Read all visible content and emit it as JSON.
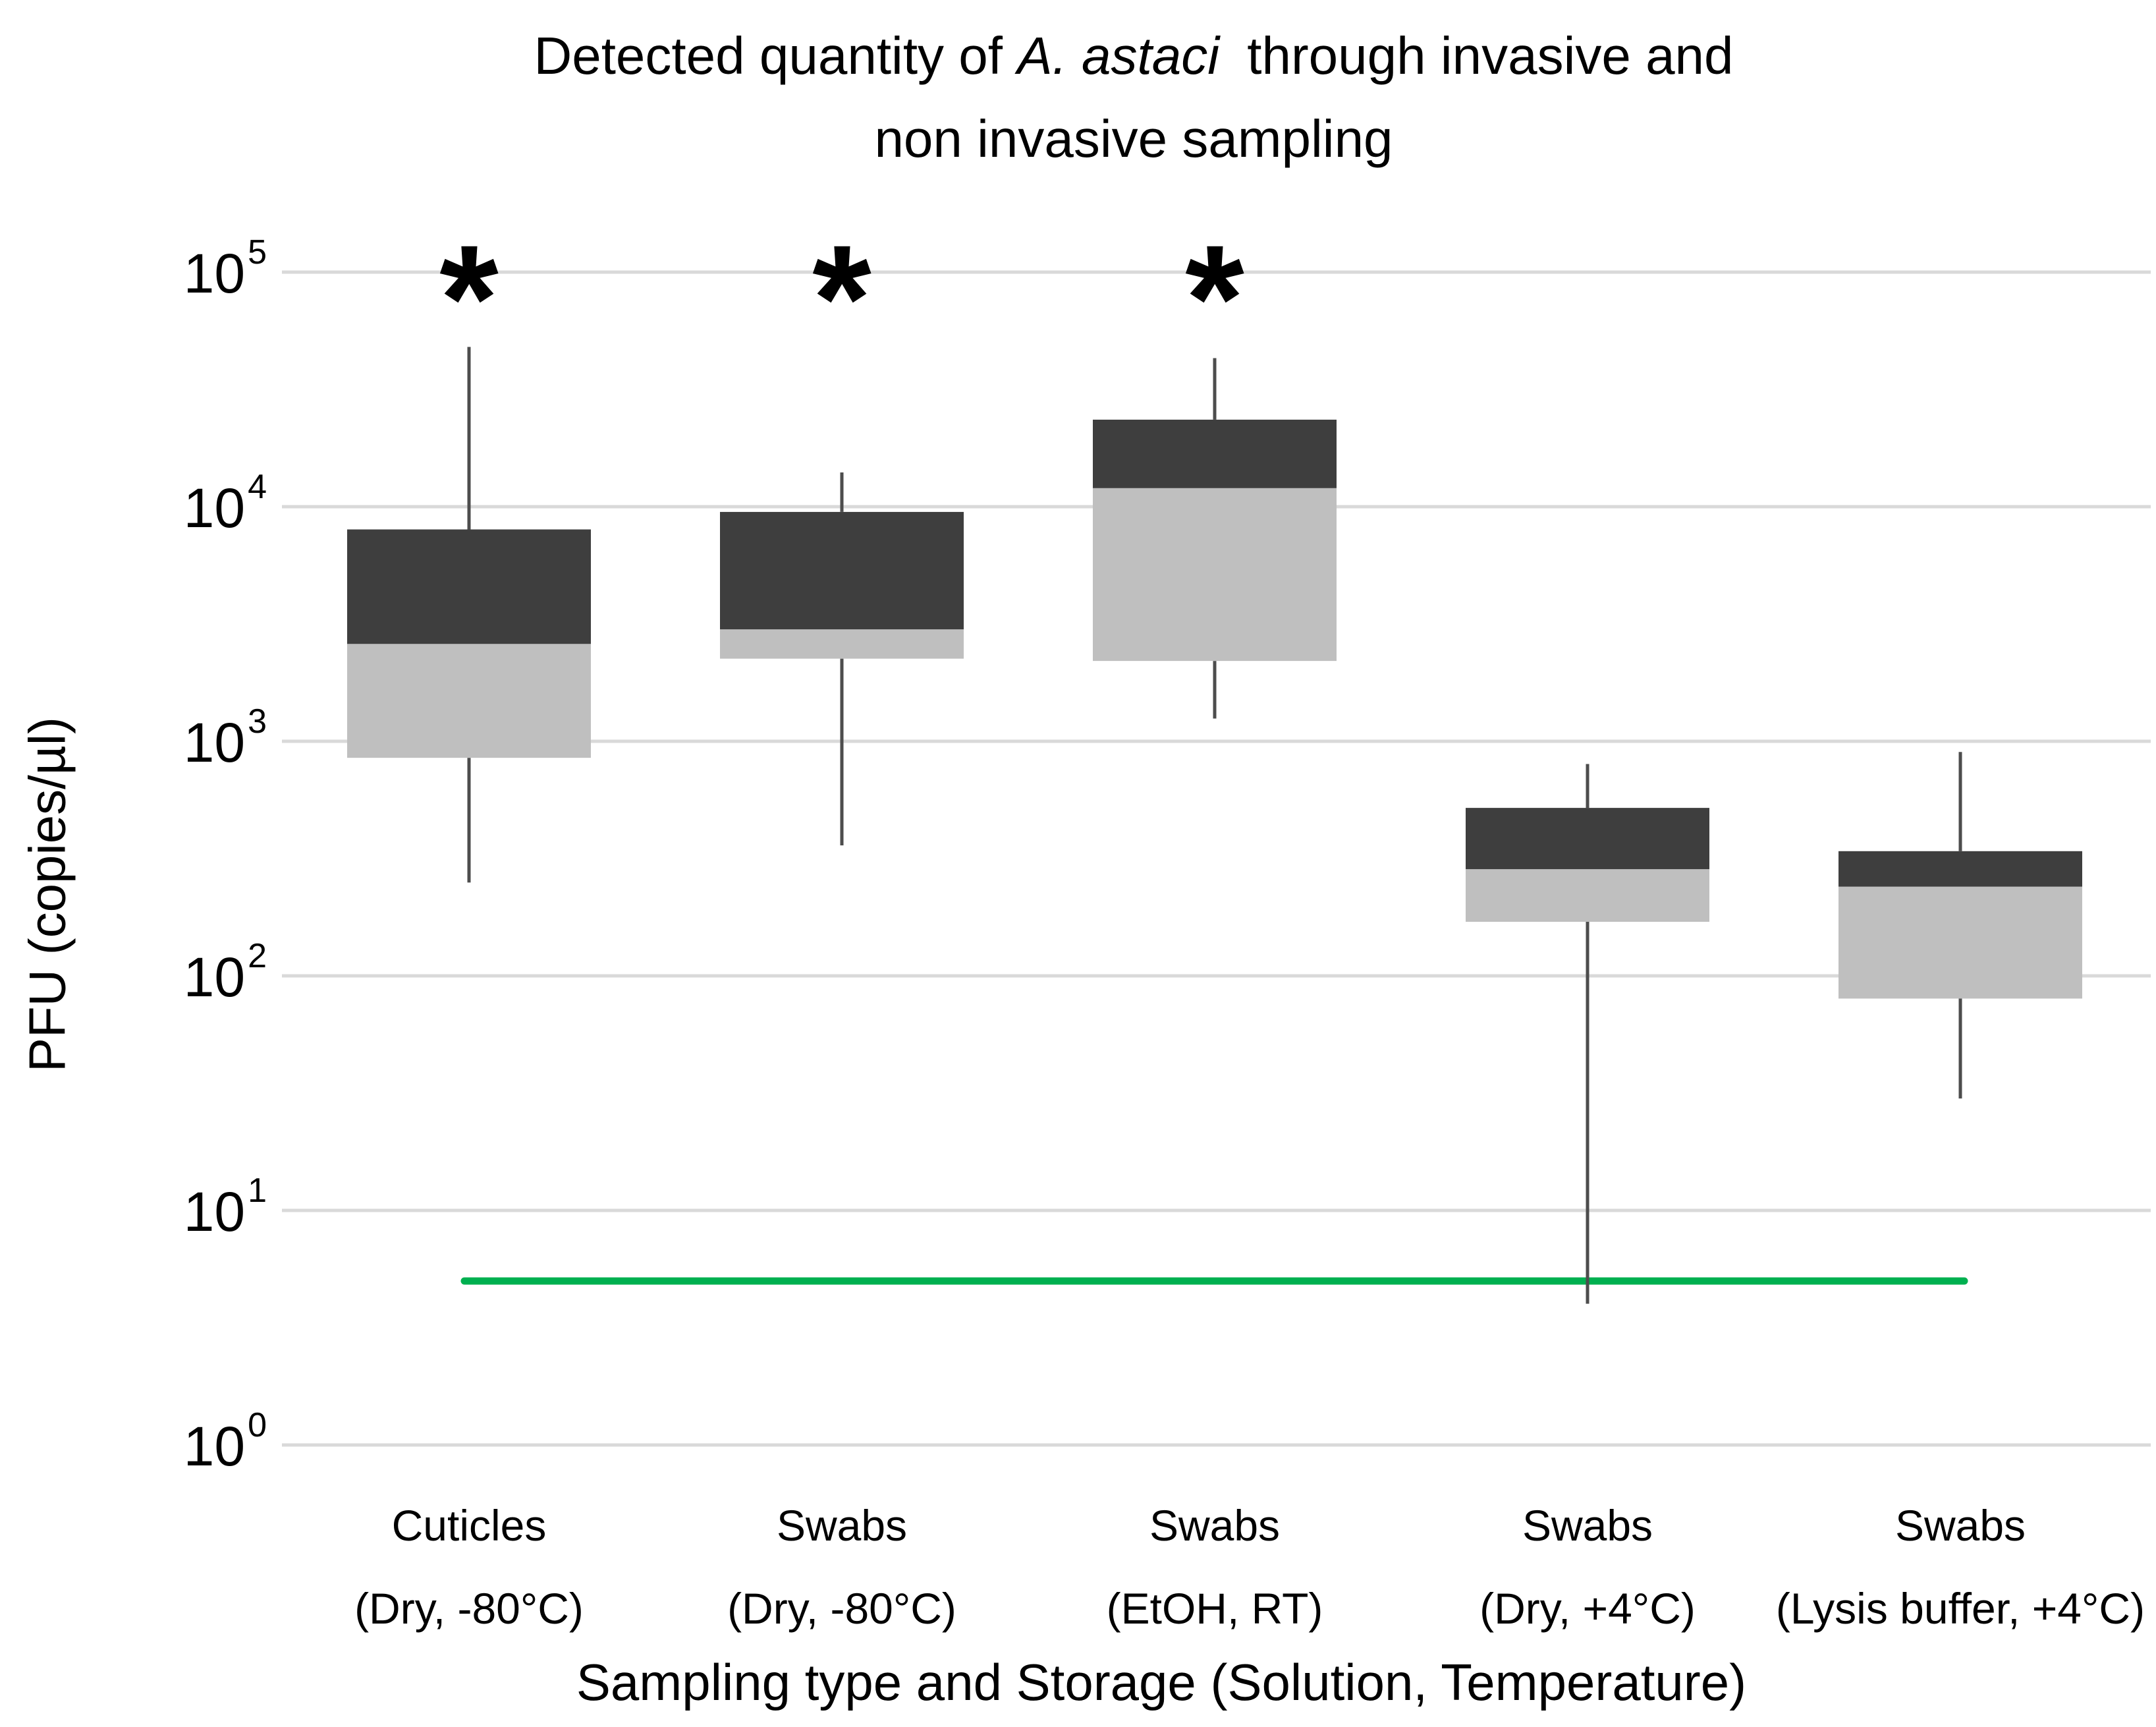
{
  "title": {
    "prefix": "Detected quantity of ",
    "species": "A. astaci",
    "suffix": " through invasive and",
    "line2": "non invasive sampling"
  },
  "y_axis": {
    "label": "PFU (copies/µl)",
    "tick_base": "10",
    "tick_exponents": [
      5,
      4,
      3,
      2,
      1,
      0
    ]
  },
  "x_axis": {
    "label": "Sampling type and Storage (Solution, Temperature)"
  },
  "chart_data": {
    "type": "box",
    "y_scale": "log10",
    "y_unit": "copies/µl",
    "ylim": [
      1,
      100000
    ],
    "grid": "horizontal",
    "significance_marker": "*",
    "title": "Detected quantity of A. astaci through invasive and non invasive sampling",
    "xlabel": "Sampling type and Storage (Solution, Temperature)",
    "ylabel": "PFU (copies/µl)",
    "categories": [
      "Cuticles (Dry, -80°C)",
      "Swabs (Dry, -80°C)",
      "Swabs (EtOH, RT)",
      "Swabs (Dry, +4°C)",
      "Swabs (Lysis buffer, +4°C)"
    ],
    "series": [
      {
        "label_line1": "Cuticles",
        "label_line2": "(Dry, -80°C)",
        "whisker_low": 250,
        "q1": 850,
        "median": 2600,
        "q3": 8000,
        "whisker_high": 48000,
        "significant": true
      },
      {
        "label_line1": "Swabs",
        "label_line2": "(Dry, -80°C)",
        "whisker_low": 360,
        "q1": 2250,
        "median": 3000,
        "q3": 9500,
        "whisker_high": 14000,
        "significant": true
      },
      {
        "label_line1": "Swabs",
        "label_line2": "(EtOH, RT)",
        "whisker_low": 1250,
        "q1": 2200,
        "median": 12000,
        "q3": 23500,
        "whisker_high": 43000,
        "significant": true
      },
      {
        "label_line1": "Swabs",
        "label_line2": "(Dry, +4°C)",
        "whisker_low": 4,
        "q1": 170,
        "median": 285,
        "q3": 520,
        "whisker_high": 800,
        "significant": false
      },
      {
        "label_line1": "Swabs",
        "label_line2": "(Lysis buffer, +4°C)",
        "whisker_low": 30,
        "q1": 80,
        "median": 240,
        "q3": 340,
        "whisker_high": 900,
        "significant": false
      }
    ],
    "reference_line": {
      "value": 5,
      "color": "#00b050"
    }
  },
  "colors": {
    "box_upper": "#3e3e3e",
    "box_lower": "#bfbfbf",
    "whisker": "#4d4d4d",
    "gridline": "#d9d9d9",
    "text": "#000000"
  }
}
